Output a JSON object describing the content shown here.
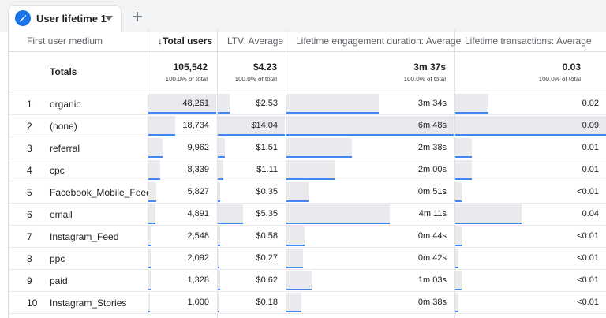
{
  "tab": {
    "label": "User lifetime 1",
    "pencil_icon": "pencil-icon",
    "caret_icon": "caret-down-icon"
  },
  "add_tab": {
    "label": "+"
  },
  "headers": {
    "dimension": "First user medium",
    "total_users": "↓Total users",
    "ltv": "LTV: Average",
    "engagement": "Lifetime engagement duration: Average",
    "transactions": "Lifetime transactions: Average"
  },
  "totals": {
    "label": "Totals",
    "total_users": "105,542",
    "total_users_pct": "100.0% of total",
    "ltv": "$4.23",
    "ltv_pct": "100.0% of total",
    "engagement": "3m 37s",
    "engagement_pct": "100.0% of total",
    "transactions": "0.03",
    "transactions_pct": "100.0% of total"
  },
  "rows": [
    {
      "num": "1",
      "name": "organic",
      "users": "48,261",
      "ltv": "$2.53",
      "eng": "3m 34s",
      "tx": "0.02",
      "users_frac": 1.0,
      "ltv_frac": 0.18,
      "eng_frac": 0.55,
      "tx_frac": 0.22
    },
    {
      "num": "2",
      "name": "(none)",
      "users": "18,734",
      "ltv": "$14.04",
      "eng": "6m 48s",
      "tx": "0.09",
      "users_frac": 0.39,
      "ltv_frac": 1.0,
      "eng_frac": 1.0,
      "tx_frac": 1.0
    },
    {
      "num": "3",
      "name": "referral",
      "users": "9,962",
      "ltv": "$1.51",
      "eng": "2m 38s",
      "tx": "0.01",
      "users_frac": 0.21,
      "ltv_frac": 0.11,
      "eng_frac": 0.39,
      "tx_frac": 0.11
    },
    {
      "num": "4",
      "name": "cpc",
      "users": "8,339",
      "ltv": "$1.11",
      "eng": "2m 00s",
      "tx": "0.01",
      "users_frac": 0.17,
      "ltv_frac": 0.08,
      "eng_frac": 0.29,
      "tx_frac": 0.11
    },
    {
      "num": "5",
      "name": "Facebook_Mobile_Feed",
      "users": "5,827",
      "ltv": "$0.35",
      "eng": "0m 51s",
      "tx": "<0.01",
      "users_frac": 0.12,
      "ltv_frac": 0.03,
      "eng_frac": 0.13,
      "tx_frac": 0.04
    },
    {
      "num": "6",
      "name": "email",
      "users": "4,891",
      "ltv": "$5.35",
      "eng": "4m 11s",
      "tx": "0.04",
      "users_frac": 0.1,
      "ltv_frac": 0.38,
      "eng_frac": 0.62,
      "tx_frac": 0.44
    },
    {
      "num": "7",
      "name": "Instagram_Feed",
      "users": "2,548",
      "ltv": "$0.58",
      "eng": "0m 44s",
      "tx": "<0.01",
      "users_frac": 0.05,
      "ltv_frac": 0.04,
      "eng_frac": 0.11,
      "tx_frac": 0.04
    },
    {
      "num": "8",
      "name": "ppc",
      "users": "2,092",
      "ltv": "$0.27",
      "eng": "0m 42s",
      "tx": "<0.01",
      "users_frac": 0.04,
      "ltv_frac": 0.02,
      "eng_frac": 0.1,
      "tx_frac": 0.02
    },
    {
      "num": "9",
      "name": "paid",
      "users": "1,328",
      "ltv": "$0.62",
      "eng": "1m 03s",
      "tx": "<0.01",
      "users_frac": 0.03,
      "ltv_frac": 0.04,
      "eng_frac": 0.15,
      "tx_frac": 0.04
    },
    {
      "num": "10",
      "name": "Instagram_Stories",
      "users": "1,000",
      "ltv": "$0.18",
      "eng": "0m 38s",
      "tx": "<0.01",
      "users_frac": 0.02,
      "ltv_frac": 0.01,
      "eng_frac": 0.09,
      "tx_frac": 0.02
    }
  ],
  "colors": {
    "accent": "#1a73e8",
    "bar_line": "#4285f4",
    "bar_fill": "#e8eaed"
  }
}
